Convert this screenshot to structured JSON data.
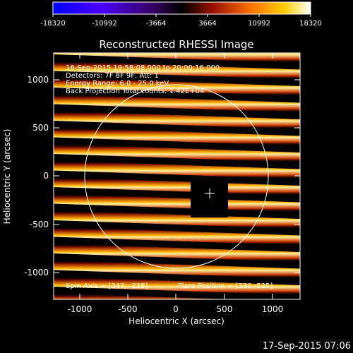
{
  "colorbar": {
    "ticks": [
      "-18320",
      "-10992",
      "-3664",
      "3664",
      "10992",
      "18320"
    ]
  },
  "title": "Reconstructed RHESSI Image",
  "info": {
    "line1": "16-Sep-2015 19:58:08.000 to 20:00:16.000",
    "line2": "Detectors: 7F 8F 9F, Att: 1",
    "line3": "Energy Range: 6.0 - 25.0 keV",
    "line4": "Back Projection    Total counts: 1.42E+04"
  },
  "footer_left": "Spin Axis = [347, -228]",
  "footer_right": "Flare Position = [330,-525]",
  "axes": {
    "xlabel": "Heliocentric X (arcsec)",
    "ylabel": "Heliocentric Y (arcsec)",
    "xticks": [
      "-1000",
      "-500",
      "0",
      "500",
      "1000"
    ],
    "yticks": [
      "1000",
      "500",
      "0",
      "-500",
      "-1000"
    ]
  },
  "timestamp": "17-Sep-2015 07:06",
  "colors": {
    "background": "#000000",
    "foreground": "#ffffff"
  }
}
